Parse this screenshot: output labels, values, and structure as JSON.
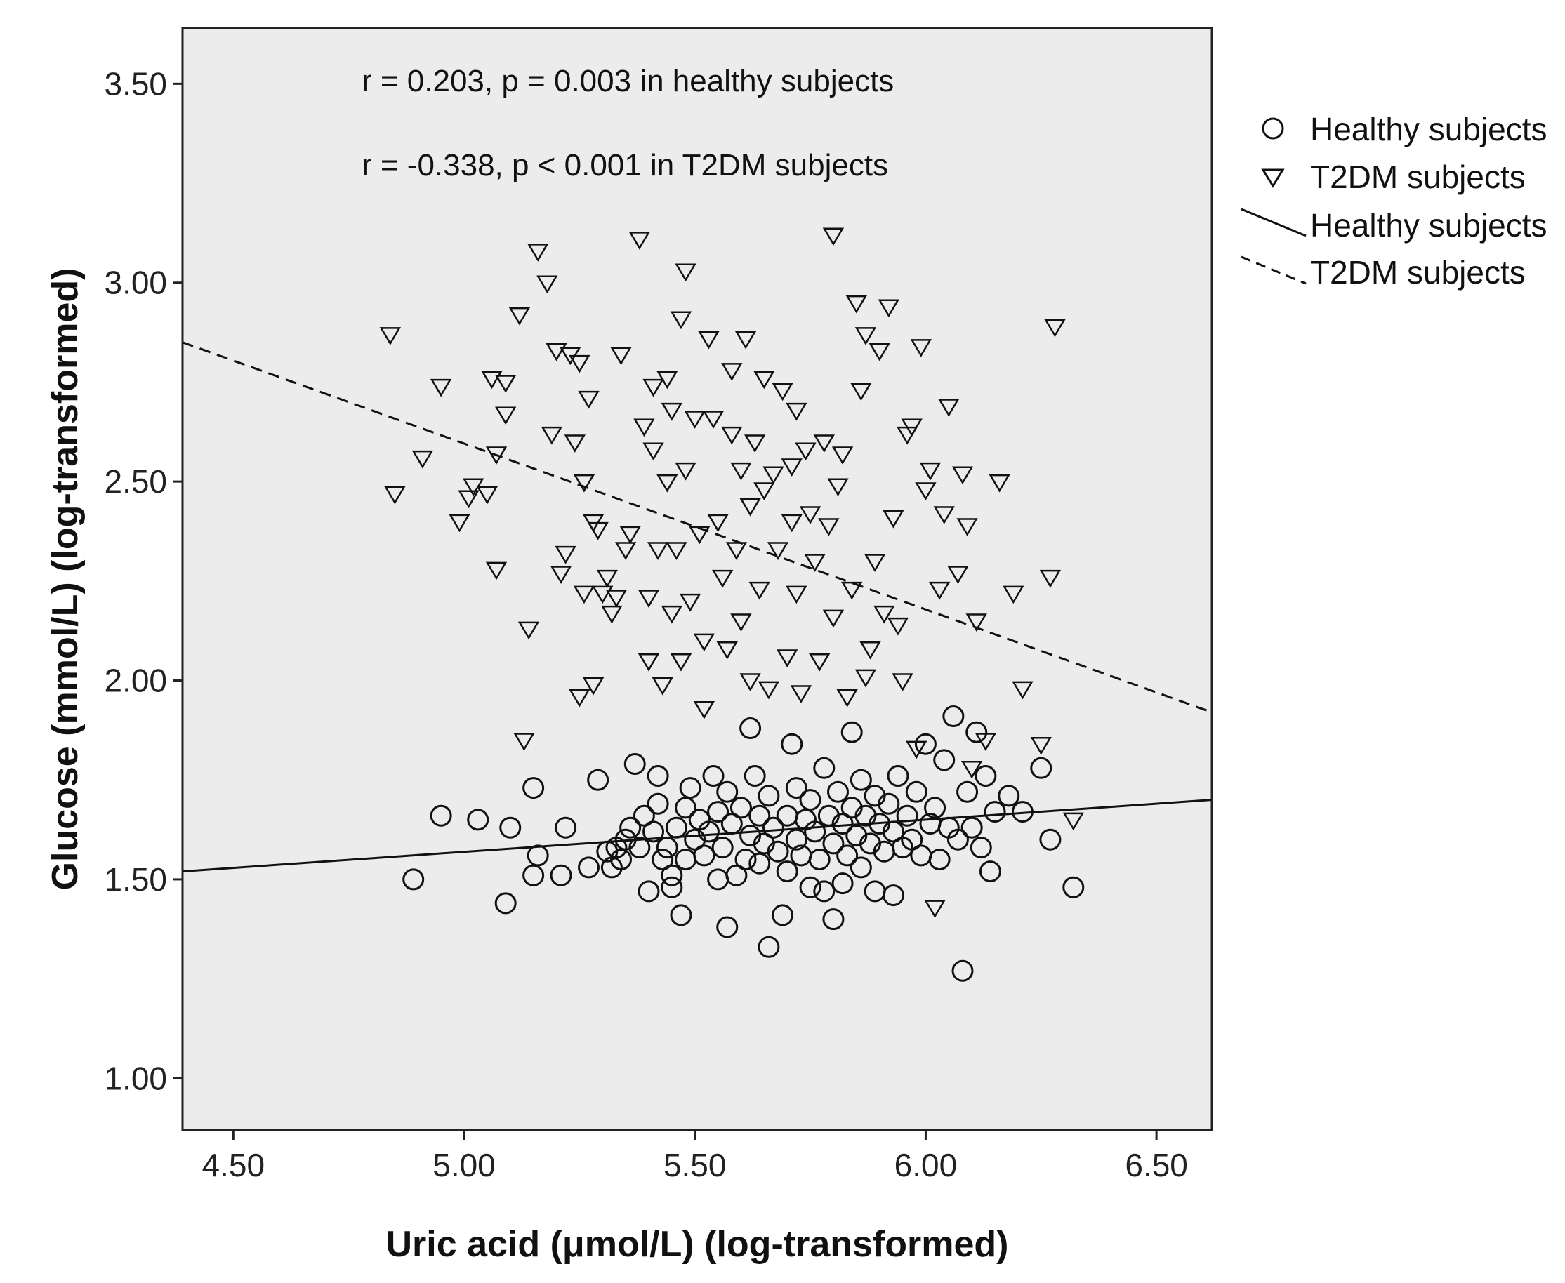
{
  "chart_data": {
    "type": "scatter",
    "title": "",
    "xlabel": "Uric acid (μmol/L) (log-transformed)",
    "ylabel": "Glucose (mmol/L) (log-transformed)",
    "xlim": [
      4.39,
      6.62
    ],
    "ylim": [
      0.87,
      3.64
    ],
    "xticks": [
      4.5,
      5.0,
      5.5,
      6.0,
      6.5
    ],
    "xtick_labels": [
      "4.50",
      "5.00",
      "5.50",
      "6.00",
      "6.50"
    ],
    "yticks": [
      1.0,
      1.5,
      2.0,
      2.5,
      3.0,
      3.5
    ],
    "ytick_labels": [
      "1.00",
      "1.50",
      "2.00",
      "2.50",
      "3.00",
      "3.50"
    ],
    "grid": false,
    "background": "#ececec",
    "annotations": [
      "r = 0.203, p = 0.003 in healthy subjects",
      "r = -0.338, p < 0.001 in T2DM subjects"
    ],
    "legend": {
      "placement": "right",
      "entries": [
        {
          "label": "Healthy subjects",
          "kind": "marker",
          "marker": "circle"
        },
        {
          "label": "T2DM subjects",
          "kind": "marker",
          "marker": "triangle-down"
        },
        {
          "label": "Healthy subjects",
          "kind": "line",
          "style": "solid"
        },
        {
          "label": "T2DM subjects",
          "kind": "line",
          "style": "dashed"
        }
      ]
    },
    "series": [
      {
        "name": "Healthy subjects",
        "marker": "circle",
        "points": [
          [
            4.89,
            1.5
          ],
          [
            4.95,
            1.66
          ],
          [
            5.03,
            1.65
          ],
          [
            5.09,
            1.44
          ],
          [
            5.1,
            1.63
          ],
          [
            5.15,
            1.73
          ],
          [
            5.15,
            1.51
          ],
          [
            5.16,
            1.56
          ],
          [
            5.21,
            1.51
          ],
          [
            5.22,
            1.63
          ],
          [
            5.27,
            1.53
          ],
          [
            5.29,
            1.75
          ],
          [
            5.31,
            1.57
          ],
          [
            5.32,
            1.53
          ],
          [
            5.33,
            1.58
          ],
          [
            5.34,
            1.55
          ],
          [
            5.35,
            1.6
          ],
          [
            5.36,
            1.63
          ],
          [
            5.37,
            1.79
          ],
          [
            5.38,
            1.58
          ],
          [
            5.39,
            1.66
          ],
          [
            5.4,
            1.47
          ],
          [
            5.41,
            1.62
          ],
          [
            5.42,
            1.69
          ],
          [
            5.42,
            1.76
          ],
          [
            5.43,
            1.55
          ],
          [
            5.44,
            1.58
          ],
          [
            5.45,
            1.51
          ],
          [
            5.45,
            1.48
          ],
          [
            5.46,
            1.63
          ],
          [
            5.47,
            1.41
          ],
          [
            5.48,
            1.55
          ],
          [
            5.48,
            1.68
          ],
          [
            5.49,
            1.73
          ],
          [
            5.5,
            1.6
          ],
          [
            5.51,
            1.65
          ],
          [
            5.52,
            1.56
          ],
          [
            5.53,
            1.62
          ],
          [
            5.54,
            1.76
          ],
          [
            5.55,
            1.5
          ],
          [
            5.55,
            1.67
          ],
          [
            5.56,
            1.58
          ],
          [
            5.57,
            1.72
          ],
          [
            5.57,
            1.38
          ],
          [
            5.58,
            1.64
          ],
          [
            5.59,
            1.51
          ],
          [
            5.6,
            1.68
          ],
          [
            5.61,
            1.55
          ],
          [
            5.62,
            1.88
          ],
          [
            5.62,
            1.61
          ],
          [
            5.63,
            1.76
          ],
          [
            5.64,
            1.54
          ],
          [
            5.64,
            1.66
          ],
          [
            5.65,
            1.59
          ],
          [
            5.66,
            1.33
          ],
          [
            5.66,
            1.71
          ],
          [
            5.67,
            1.63
          ],
          [
            5.68,
            1.57
          ],
          [
            5.69,
            1.41
          ],
          [
            5.7,
            1.66
          ],
          [
            5.7,
            1.52
          ],
          [
            5.71,
            1.84
          ],
          [
            5.72,
            1.6
          ],
          [
            5.72,
            1.73
          ],
          [
            5.73,
            1.56
          ],
          [
            5.74,
            1.65
          ],
          [
            5.75,
            1.48
          ],
          [
            5.75,
            1.7
          ],
          [
            5.76,
            1.62
          ],
          [
            5.77,
            1.55
          ],
          [
            5.78,
            1.78
          ],
          [
            5.78,
            1.47
          ],
          [
            5.79,
            1.66
          ],
          [
            5.8,
            1.4
          ],
          [
            5.8,
            1.59
          ],
          [
            5.81,
            1.72
          ],
          [
            5.82,
            1.64
          ],
          [
            5.82,
            1.49
          ],
          [
            5.83,
            1.56
          ],
          [
            5.84,
            1.87
          ],
          [
            5.84,
            1.68
          ],
          [
            5.85,
            1.61
          ],
          [
            5.86,
            1.75
          ],
          [
            5.86,
            1.53
          ],
          [
            5.87,
            1.66
          ],
          [
            5.88,
            1.59
          ],
          [
            5.89,
            1.71
          ],
          [
            5.89,
            1.47
          ],
          [
            5.9,
            1.64
          ],
          [
            5.91,
            1.57
          ],
          [
            5.92,
            1.69
          ],
          [
            5.93,
            1.46
          ],
          [
            5.93,
            1.62
          ],
          [
            5.94,
            1.76
          ],
          [
            5.95,
            1.58
          ],
          [
            5.96,
            1.66
          ],
          [
            5.97,
            1.6
          ],
          [
            5.98,
            1.72
          ],
          [
            5.99,
            1.56
          ],
          [
            6.0,
            1.84
          ],
          [
            6.01,
            1.64
          ],
          [
            6.02,
            1.68
          ],
          [
            6.03,
            1.55
          ],
          [
            6.04,
            1.8
          ],
          [
            6.05,
            1.63
          ],
          [
            6.06,
            1.91
          ],
          [
            6.07,
            1.6
          ],
          [
            6.08,
            1.27
          ],
          [
            6.09,
            1.72
          ],
          [
            6.1,
            1.63
          ],
          [
            6.11,
            1.87
          ],
          [
            6.12,
            1.58
          ],
          [
            6.13,
            1.76
          ],
          [
            6.14,
            1.52
          ],
          [
            6.15,
            1.67
          ],
          [
            6.18,
            1.71
          ],
          [
            6.21,
            1.67
          ],
          [
            6.25,
            1.78
          ],
          [
            6.27,
            1.6
          ],
          [
            6.32,
            1.48
          ]
        ]
      },
      {
        "name": "T2DM subjects",
        "marker": "triangle-down",
        "points": [
          [
            4.84,
            2.87
          ],
          [
            4.85,
            2.47
          ],
          [
            4.91,
            2.56
          ],
          [
            4.95,
            2.74
          ],
          [
            4.99,
            2.4
          ],
          [
            5.01,
            2.46
          ],
          [
            5.02,
            2.49
          ],
          [
            5.05,
            2.47
          ],
          [
            5.06,
            2.76
          ],
          [
            5.07,
            2.57
          ],
          [
            5.07,
            2.28
          ],
          [
            5.09,
            2.75
          ],
          [
            5.09,
            2.67
          ],
          [
            5.12,
            2.92
          ],
          [
            5.13,
            1.85
          ],
          [
            5.14,
            2.13
          ],
          [
            5.16,
            3.08
          ],
          [
            5.18,
            3.0
          ],
          [
            5.19,
            2.62
          ],
          [
            5.2,
            2.83
          ],
          [
            5.21,
            2.27
          ],
          [
            5.22,
            2.32
          ],
          [
            5.23,
            2.82
          ],
          [
            5.24,
            2.6
          ],
          [
            5.25,
            1.96
          ],
          [
            5.25,
            2.8
          ],
          [
            5.26,
            2.22
          ],
          [
            5.26,
            2.5
          ],
          [
            5.27,
            2.71
          ],
          [
            5.28,
            2.4
          ],
          [
            5.28,
            1.99
          ],
          [
            5.29,
            2.38
          ],
          [
            5.3,
            2.22
          ],
          [
            5.31,
            2.26
          ],
          [
            5.32,
            2.17
          ],
          [
            5.33,
            2.21
          ],
          [
            5.34,
            2.82
          ],
          [
            5.35,
            2.33
          ],
          [
            5.36,
            2.37
          ],
          [
            5.38,
            3.11
          ],
          [
            5.39,
            2.64
          ],
          [
            5.4,
            2.21
          ],
          [
            5.4,
            2.05
          ],
          [
            5.41,
            2.74
          ],
          [
            5.41,
            2.58
          ],
          [
            5.42,
            2.33
          ],
          [
            5.43,
            1.99
          ],
          [
            5.44,
            2.76
          ],
          [
            5.44,
            2.5
          ],
          [
            5.45,
            2.68
          ],
          [
            5.45,
            2.17
          ],
          [
            5.46,
            2.33
          ],
          [
            5.47,
            2.05
          ],
          [
            5.47,
            2.91
          ],
          [
            5.48,
            3.03
          ],
          [
            5.48,
            2.53
          ],
          [
            5.49,
            2.2
          ],
          [
            5.5,
            2.66
          ],
          [
            5.51,
            2.37
          ],
          [
            5.52,
            2.1
          ],
          [
            5.52,
            1.93
          ],
          [
            5.53,
            2.86
          ],
          [
            5.54,
            2.66
          ],
          [
            5.55,
            2.4
          ],
          [
            5.56,
            2.26
          ],
          [
            5.57,
            2.08
          ],
          [
            5.58,
            2.62
          ],
          [
            5.58,
            2.78
          ],
          [
            5.59,
            2.33
          ],
          [
            5.6,
            2.53
          ],
          [
            5.6,
            2.15
          ],
          [
            5.61,
            2.86
          ],
          [
            5.62,
            2.44
          ],
          [
            5.62,
            2.0
          ],
          [
            5.63,
            2.6
          ],
          [
            5.64,
            2.23
          ],
          [
            5.65,
            2.76
          ],
          [
            5.65,
            2.48
          ],
          [
            5.66,
            1.98
          ],
          [
            5.67,
            2.52
          ],
          [
            5.68,
            2.33
          ],
          [
            5.69,
            2.73
          ],
          [
            5.7,
            2.06
          ],
          [
            5.71,
            2.54
          ],
          [
            5.71,
            2.4
          ],
          [
            5.72,
            2.68
          ],
          [
            5.72,
            2.22
          ],
          [
            5.73,
            1.97
          ],
          [
            5.74,
            2.58
          ],
          [
            5.75,
            2.42
          ],
          [
            5.76,
            2.3
          ],
          [
            5.77,
            2.05
          ],
          [
            5.78,
            2.6
          ],
          [
            5.79,
            2.39
          ],
          [
            5.8,
            3.12
          ],
          [
            5.8,
            2.16
          ],
          [
            5.81,
            2.49
          ],
          [
            5.82,
            2.57
          ],
          [
            5.83,
            1.96
          ],
          [
            5.84,
            2.23
          ],
          [
            5.85,
            2.95
          ],
          [
            5.86,
            2.73
          ],
          [
            5.87,
            2.87
          ],
          [
            5.87,
            2.01
          ],
          [
            5.88,
            2.08
          ],
          [
            5.89,
            2.3
          ],
          [
            5.9,
            2.83
          ],
          [
            5.91,
            2.17
          ],
          [
            5.92,
            2.94
          ],
          [
            5.93,
            2.41
          ],
          [
            5.94,
            2.14
          ],
          [
            5.95,
            2.0
          ],
          [
            5.96,
            2.62
          ],
          [
            5.97,
            2.64
          ],
          [
            5.98,
            1.83
          ],
          [
            5.99,
            2.84
          ],
          [
            6.0,
            2.48
          ],
          [
            6.01,
            2.53
          ],
          [
            6.02,
            1.43
          ],
          [
            6.03,
            2.23
          ],
          [
            6.04,
            2.42
          ],
          [
            6.05,
            2.69
          ],
          [
            6.07,
            2.27
          ],
          [
            6.08,
            2.52
          ],
          [
            6.09,
            2.39
          ],
          [
            6.1,
            1.78
          ],
          [
            6.11,
            2.15
          ],
          [
            6.13,
            1.85
          ],
          [
            6.16,
            2.5
          ],
          [
            6.19,
            2.22
          ],
          [
            6.21,
            1.98
          ],
          [
            6.25,
            1.84
          ],
          [
            6.27,
            2.26
          ],
          [
            6.28,
            2.89
          ],
          [
            6.32,
            1.65
          ]
        ]
      }
    ],
    "fit_lines": [
      {
        "name": "Healthy subjects",
        "style": "solid",
        "from": [
          4.39,
          1.52
        ],
        "to": [
          6.62,
          1.7
        ]
      },
      {
        "name": "T2DM subjects",
        "style": "dashed",
        "from": [
          4.39,
          2.85
        ],
        "to": [
          6.62,
          1.92
        ]
      }
    ]
  }
}
